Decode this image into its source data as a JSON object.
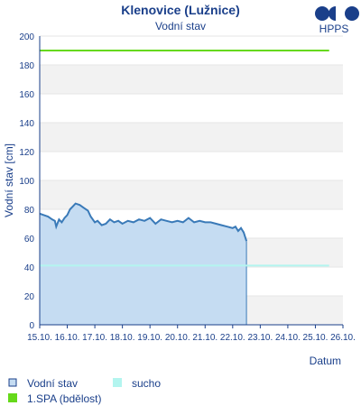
{
  "chart_data": {
    "type": "area",
    "title": "Klenovice (Lužnice)",
    "subtitle": "Vodní stav",
    "xlabel": "Datum",
    "ylabel": "Vodní stav [cm]",
    "ylim": [
      0,
      200
    ],
    "y_ticks": [
      0,
      20,
      40,
      60,
      80,
      100,
      120,
      140,
      160,
      180,
      200
    ],
    "x_ticks": [
      "15.10.",
      "16.10.",
      "17.10.",
      "18.10.",
      "19.10.",
      "20.10.",
      "21.10.",
      "22.10.",
      "23.10.",
      "24.10.",
      "25.10.",
      "26.10."
    ],
    "xlim": [
      0,
      11
    ],
    "grid": "horizontal bands",
    "series": [
      {
        "name": "Vodní stav",
        "color": "#3a7ab8",
        "fill": "#c5dcf2",
        "x": [
          0,
          0.15,
          0.3,
          0.45,
          0.55,
          0.6,
          0.7,
          0.8,
          0.9,
          1.0,
          1.1,
          1.2,
          1.3,
          1.45,
          1.6,
          1.75,
          1.85,
          2.0,
          2.1,
          2.25,
          2.4,
          2.55,
          2.7,
          2.85,
          3.0,
          3.2,
          3.4,
          3.6,
          3.8,
          4.0,
          4.2,
          4.4,
          4.6,
          4.8,
          5.0,
          5.2,
          5.4,
          5.6,
          5.8,
          6.0,
          6.2,
          6.4,
          6.6,
          6.8,
          7.0,
          7.1,
          7.2,
          7.3,
          7.4,
          7.5
        ],
        "values": [
          77,
          76,
          75,
          73,
          72,
          68,
          73,
          71,
          74,
          76,
          80,
          82,
          84,
          83,
          81,
          79,
          75,
          71,
          72,
          69,
          70,
          73,
          71,
          72,
          70,
          72,
          71,
          73,
          72,
          74,
          70,
          73,
          72,
          71,
          72,
          71,
          74,
          71,
          72,
          71,
          71,
          70,
          69,
          68,
          67,
          68,
          65,
          67,
          64,
          58
        ]
      },
      {
        "name": "sucho",
        "color": "#b3f5ef",
        "x": [
          0,
          10.5
        ],
        "values": [
          41,
          41
        ]
      },
      {
        "name": "1.SPA (bdělost)",
        "color": "#66d91a",
        "x": [
          0,
          10.5
        ],
        "values": [
          190,
          190
        ]
      }
    ]
  },
  "logo": {
    "text": "HPPS",
    "color": "#1a3f8a"
  }
}
